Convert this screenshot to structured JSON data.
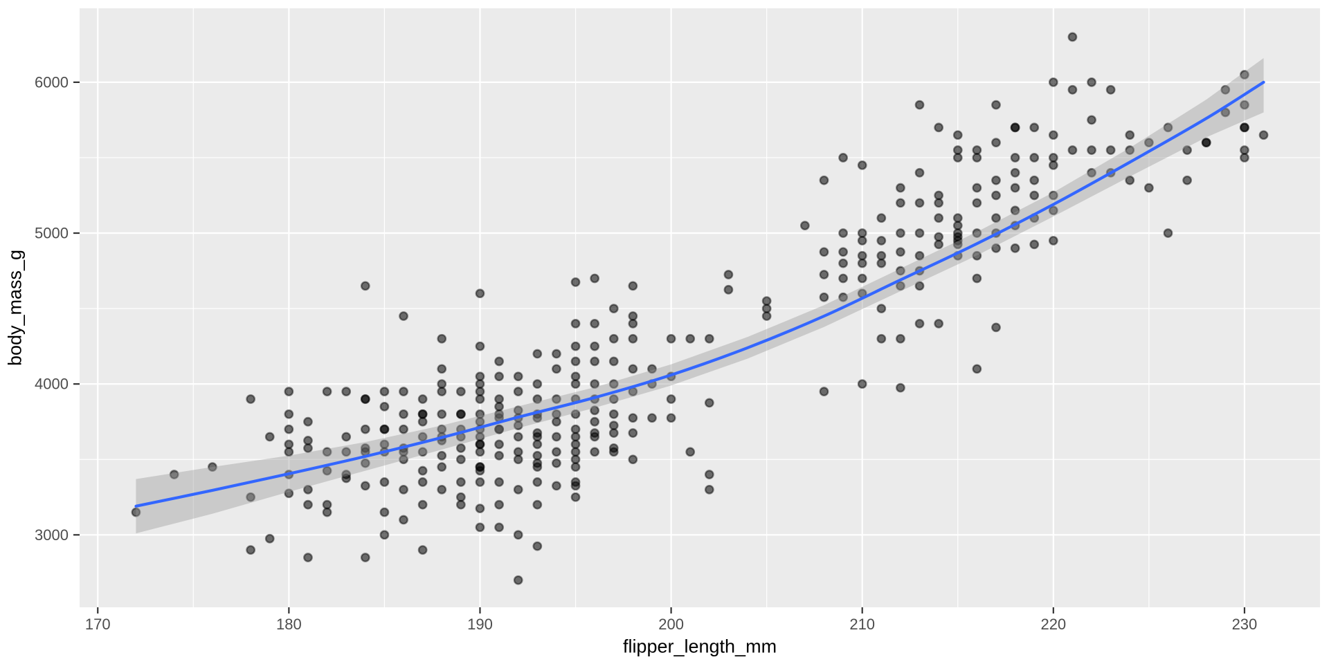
{
  "chart_data": {
    "type": "scatter",
    "title": "",
    "xlabel": "flipper_length_mm",
    "ylabel": "body_mass_g",
    "xlim": [
      169.05,
      233.95
    ],
    "ylim": [
      2520,
      6490
    ],
    "x_major_ticks": [
      170,
      180,
      190,
      200,
      210,
      220,
      230
    ],
    "x_minor_ticks": [
      175,
      185,
      195,
      205,
      215,
      225
    ],
    "y_major_ticks": [
      3000,
      4000,
      5000,
      6000
    ],
    "y_minor_ticks": [
      3500,
      4500,
      5500
    ],
    "grid": true,
    "legend_position": "none",
    "colors": {
      "panel_bg": "#EBEBEB",
      "grid": "#FFFFFF",
      "point": "#000000",
      "point_fill_opacity": 0.55,
      "point_edge_opacity": 0.45,
      "smooth_line": "#3366FF",
      "ribbon": "#999999",
      "ribbon_opacity": 0.4,
      "tick_mark": "#333333",
      "tick_label": "#4D4D4D",
      "axis_title": "#000000"
    },
    "smooth_line": {
      "x": [
        172,
        176,
        180,
        184,
        188,
        192,
        196,
        200,
        204,
        208,
        212,
        216,
        220,
        224,
        228,
        231
      ],
      "y": [
        3190,
        3295,
        3405,
        3520,
        3645,
        3780,
        3910,
        4060,
        4240,
        4450,
        4690,
        4930,
        5190,
        5470,
        5760,
        6000
      ],
      "upper": [
        3370,
        3450,
        3525,
        3615,
        3725,
        3852,
        3978,
        4130,
        4312,
        4522,
        4765,
        5008,
        5270,
        5565,
        5885,
        6160
      ],
      "lower": [
        3010,
        3140,
        3285,
        3425,
        3565,
        3708,
        3842,
        3990,
        4168,
        4378,
        4615,
        4852,
        5110,
        5375,
        5635,
        5800
      ]
    },
    "points": [
      [
        172,
        3150
      ],
      [
        174,
        3400
      ],
      [
        176,
        3450
      ],
      [
        178,
        3250
      ],
      [
        178,
        3900
      ],
      [
        178,
        2900
      ],
      [
        179,
        2975
      ],
      [
        179,
        3650
      ],
      [
        180,
        3600
      ],
      [
        180,
        3700
      ],
      [
        180,
        3800
      ],
      [
        180,
        3950
      ],
      [
        180,
        3550
      ],
      [
        180,
        3400
      ],
      [
        180,
        3275
      ],
      [
        181,
        3750
      ],
      [
        181,
        3625
      ],
      [
        181,
        3300
      ],
      [
        181,
        2850
      ],
      [
        181,
        3200
      ],
      [
        181,
        3575
      ],
      [
        182,
        3200
      ],
      [
        182,
        3150
      ],
      [
        182,
        3425
      ],
      [
        182,
        3550
      ],
      [
        182,
        3950
      ],
      [
        183,
        3550
      ],
      [
        183,
        3650
      ],
      [
        183,
        3400
      ],
      [
        183,
        3950
      ],
      [
        183,
        3375
      ],
      [
        184,
        3325
      ],
      [
        184,
        3900
      ],
      [
        184,
        4650
      ],
      [
        184,
        2850
      ],
      [
        184,
        3900
      ],
      [
        184,
        3575
      ],
      [
        184,
        3475
      ],
      [
        184,
        3550
      ],
      [
        184,
        3700
      ],
      [
        185,
        3950
      ],
      [
        185,
        3700
      ],
      [
        185,
        3000
      ],
      [
        185,
        3150
      ],
      [
        185,
        3550
      ],
      [
        185,
        3700
      ],
      [
        185,
        3600
      ],
      [
        185,
        3350
      ],
      [
        185,
        3850
      ],
      [
        186,
        3800
      ],
      [
        186,
        3300
      ],
      [
        186,
        3100
      ],
      [
        186,
        3500
      ],
      [
        186,
        3550
      ],
      [
        186,
        3700
      ],
      [
        186,
        4450
      ],
      [
        186,
        3575
      ],
      [
        186,
        3950
      ],
      [
        187,
        3800
      ],
      [
        187,
        3200
      ],
      [
        187,
        2900
      ],
      [
        187,
        3550
      ],
      [
        187,
        3800
      ],
      [
        187,
        3350
      ],
      [
        187,
        3650
      ],
      [
        187,
        3750
      ],
      [
        187,
        3900
      ],
      [
        187,
        3425
      ],
      [
        188,
        3300
      ],
      [
        188,
        4300
      ],
      [
        188,
        4100
      ],
      [
        188,
        3525
      ],
      [
        188,
        3800
      ],
      [
        188,
        3950
      ],
      [
        188,
        3450
      ],
      [
        188,
        3625
      ],
      [
        188,
        3650
      ],
      [
        188,
        4000
      ],
      [
        188,
        3700
      ],
      [
        189,
        3800
      ],
      [
        189,
        3200
      ],
      [
        189,
        3500
      ],
      [
        189,
        3950
      ],
      [
        189,
        3350
      ],
      [
        189,
        3650
      ],
      [
        189,
        3800
      ],
      [
        189,
        3575
      ],
      [
        189,
        3700
      ],
      [
        189,
        3250
      ],
      [
        190,
        3650
      ],
      [
        190,
        4250
      ],
      [
        190,
        3950
      ],
      [
        190,
        3450
      ],
      [
        190,
        3450
      ],
      [
        190,
        3050
      ],
      [
        190,
        3600
      ],
      [
        190,
        3900
      ],
      [
        190,
        3700
      ],
      [
        190,
        3800
      ],
      [
        190,
        3600
      ],
      [
        190,
        4600
      ],
      [
        190,
        3425
      ],
      [
        190,
        3175
      ],
      [
        190,
        4000
      ],
      [
        190,
        3750
      ],
      [
        190,
        3550
      ],
      [
        190,
        4050
      ],
      [
        190,
        3350
      ],
      [
        191,
        3800
      ],
      [
        191,
        4150
      ],
      [
        191,
        3700
      ],
      [
        191,
        3350
      ],
      [
        191,
        3700
      ],
      [
        191,
        3775
      ],
      [
        191,
        3200
      ],
      [
        191,
        3900
      ],
      [
        191,
        4050
      ],
      [
        191,
        3050
      ],
      [
        191,
        3600
      ],
      [
        191,
        3525
      ],
      [
        191,
        3850
      ],
      [
        192,
        4050
      ],
      [
        192,
        3950
      ],
      [
        192,
        2700
      ],
      [
        192,
        3500
      ],
      [
        192,
        3775
      ],
      [
        192,
        3300
      ],
      [
        192,
        3725
      ],
      [
        192,
        3000
      ],
      [
        192,
        3650
      ],
      [
        192,
        3825
      ],
      [
        192,
        3550
      ],
      [
        193,
        3450
      ],
      [
        193,
        3475
      ],
      [
        193,
        3800
      ],
      [
        193,
        4200
      ],
      [
        193,
        3650
      ],
      [
        193,
        3600
      ],
      [
        193,
        2925
      ],
      [
        193,
        3775
      ],
      [
        193,
        4000
      ],
      [
        193,
        3200
      ],
      [
        193,
        3525
      ],
      [
        193,
        3900
      ],
      [
        193,
        3350
      ],
      [
        193,
        3675
      ],
      [
        194,
        4200
      ],
      [
        194,
        3750
      ],
      [
        194,
        3550
      ],
      [
        194,
        3900
      ],
      [
        194,
        3325
      ],
      [
        194,
        3800
      ],
      [
        194,
        3650
      ],
      [
        194,
        4100
      ],
      [
        194,
        3475
      ],
      [
        195,
        3250
      ],
      [
        195,
        4675
      ],
      [
        195,
        3450
      ],
      [
        195,
        3325
      ],
      [
        195,
        3900
      ],
      [
        195,
        4400
      ],
      [
        195,
        3350
      ],
      [
        195,
        4250
      ],
      [
        195,
        4000
      ],
      [
        195,
        3650
      ],
      [
        195,
        3550
      ],
      [
        195,
        3700
      ],
      [
        195,
        4050
      ],
      [
        195,
        3800
      ],
      [
        195,
        3600
      ],
      [
        195,
        4150
      ],
      [
        195,
        3500
      ],
      [
        196,
        4150
      ],
      [
        196,
        4400
      ],
      [
        196,
        3550
      ],
      [
        196,
        4700
      ],
      [
        196,
        3900
      ],
      [
        196,
        3650
      ],
      [
        196,
        4000
      ],
      [
        196,
        3750
      ],
      [
        196,
        3825
      ],
      [
        196,
        4250
      ],
      [
        196,
        3675
      ],
      [
        197,
        4500
      ],
      [
        197,
        4150
      ],
      [
        197,
        3725
      ],
      [
        197,
        3550
      ],
      [
        197,
        4300
      ],
      [
        197,
        3900
      ],
      [
        197,
        3675
      ],
      [
        197,
        3800
      ],
      [
        197,
        4000
      ],
      [
        197,
        3575
      ],
      [
        198,
        4400
      ],
      [
        198,
        4450
      ],
      [
        198,
        4650
      ],
      [
        198,
        3950
      ],
      [
        198,
        4100
      ],
      [
        198,
        3500
      ],
      [
        198,
        3775
      ],
      [
        198,
        4300
      ],
      [
        198,
        3675
      ],
      [
        199,
        3775
      ],
      [
        199,
        4100
      ],
      [
        199,
        4000
      ],
      [
        200,
        4050
      ],
      [
        200,
        4300
      ],
      [
        200,
        3775
      ],
      [
        200,
        3900
      ],
      [
        201,
        4300
      ],
      [
        201,
        3550
      ],
      [
        202,
        4300
      ],
      [
        202,
        3875
      ],
      [
        202,
        3400
      ],
      [
        202,
        3300
      ],
      [
        205,
        4450
      ],
      [
        210,
        4000
      ],
      [
        212,
        3975
      ],
      [
        203,
        4725
      ],
      [
        203,
        4625
      ],
      [
        205,
        4550
      ],
      [
        205,
        4500
      ],
      [
        207,
        5050
      ],
      [
        208,
        5350
      ],
      [
        208,
        3950
      ],
      [
        208,
        4575
      ],
      [
        208,
        4725
      ],
      [
        208,
        4875
      ],
      [
        209,
        5500
      ],
      [
        209,
        4800
      ],
      [
        209,
        4700
      ],
      [
        209,
        4575
      ],
      [
        209,
        5000
      ],
      [
        209,
        4875
      ],
      [
        210,
        4850
      ],
      [
        210,
        4800
      ],
      [
        210,
        4700
      ],
      [
        210,
        4600
      ],
      [
        210,
        5450
      ],
      [
        210,
        5000
      ],
      [
        210,
        4950
      ],
      [
        211,
        4800
      ],
      [
        211,
        4500
      ],
      [
        211,
        4300
      ],
      [
        211,
        5100
      ],
      [
        211,
        4950
      ],
      [
        211,
        4850
      ],
      [
        212,
        5200
      ],
      [
        212,
        4875
      ],
      [
        212,
        4650
      ],
      [
        212,
        4300
      ],
      [
        212,
        5300
      ],
      [
        212,
        5000
      ],
      [
        212,
        4750
      ],
      [
        213,
        5850
      ],
      [
        213,
        5400
      ],
      [
        213,
        4650
      ],
      [
        213,
        4400
      ],
      [
        213,
        5200
      ],
      [
        213,
        5000
      ],
      [
        213,
        4850
      ],
      [
        213,
        4750
      ],
      [
        214,
        5250
      ],
      [
        214,
        4400
      ],
      [
        214,
        4925
      ],
      [
        214,
        5700
      ],
      [
        214,
        5200
      ],
      [
        214,
        5100
      ],
      [
        214,
        4975
      ],
      [
        215,
        5650
      ],
      [
        215,
        5500
      ],
      [
        215,
        4975
      ],
      [
        215,
        4850
      ],
      [
        215,
        5000
      ],
      [
        215,
        5100
      ],
      [
        215,
        5050
      ],
      [
        215,
        4950
      ],
      [
        215,
        4925
      ],
      [
        215,
        5550
      ],
      [
        216,
        5550
      ],
      [
        216,
        5300
      ],
      [
        216,
        5000
      ],
      [
        216,
        4700
      ],
      [
        216,
        4100
      ],
      [
        216,
        5500
      ],
      [
        216,
        5200
      ],
      [
        216,
        4850
      ],
      [
        217,
        5850
      ],
      [
        217,
        5250
      ],
      [
        217,
        4900
      ],
      [
        217,
        4375
      ],
      [
        217,
        5600
      ],
      [
        217,
        5350
      ],
      [
        217,
        5100
      ],
      [
        217,
        5000
      ],
      [
        218,
        5700
      ],
      [
        218,
        5700
      ],
      [
        218,
        5150
      ],
      [
        218,
        4900
      ],
      [
        218,
        5500
      ],
      [
        218,
        5400
      ],
      [
        218,
        5300
      ],
      [
        218,
        5050
      ],
      [
        219,
        5500
      ],
      [
        219,
        5250
      ],
      [
        219,
        4925
      ],
      [
        219,
        5700
      ],
      [
        219,
        5350
      ],
      [
        219,
        5100
      ],
      [
        220,
        6000
      ],
      [
        220,
        5500
      ],
      [
        220,
        5250
      ],
      [
        220,
        4950
      ],
      [
        220,
        5650
      ],
      [
        220,
        5450
      ],
      [
        220,
        5150
      ],
      [
        221,
        6300
      ],
      [
        221,
        5950
      ],
      [
        221,
        5550
      ],
      [
        222,
        6000
      ],
      [
        222,
        5750
      ],
      [
        222,
        5550
      ],
      [
        222,
        5400
      ],
      [
        223,
        5950
      ],
      [
        223,
        5550
      ],
      [
        223,
        5400
      ],
      [
        224,
        5650
      ],
      [
        224,
        5550
      ],
      [
        224,
        5350
      ],
      [
        225,
        5600
      ],
      [
        225,
        5300
      ],
      [
        226,
        5700
      ],
      [
        226,
        5000
      ],
      [
        227,
        5550
      ],
      [
        227,
        5350
      ],
      [
        228,
        5600
      ],
      [
        228,
        5600
      ],
      [
        229,
        5950
      ],
      [
        229,
        5800
      ],
      [
        230,
        6050
      ],
      [
        230,
        5850
      ],
      [
        230,
        5700
      ],
      [
        230,
        5700
      ],
      [
        230,
        5550
      ],
      [
        230,
        5500
      ],
      [
        231,
        5650
      ]
    ]
  }
}
